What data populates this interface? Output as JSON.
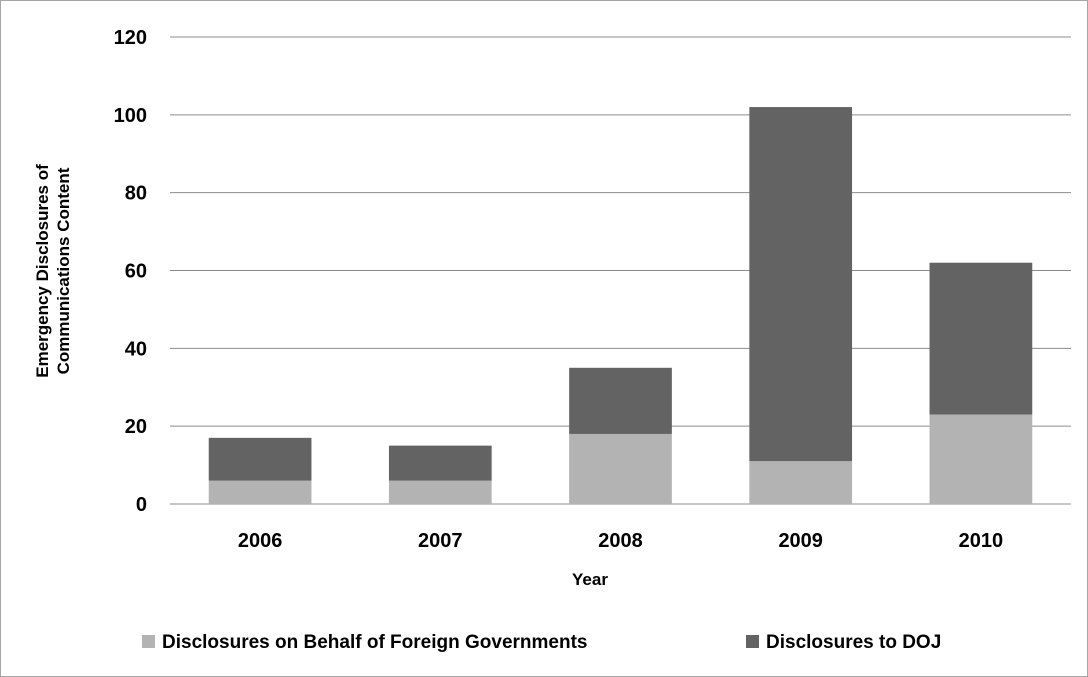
{
  "chart_data": {
    "type": "bar",
    "stacked": true,
    "categories": [
      "2006",
      "2007",
      "2008",
      "2009",
      "2010"
    ],
    "series": [
      {
        "name": "Disclosures on Behalf of Foreign Governments",
        "values": [
          6,
          6,
          18,
          11,
          23
        ],
        "color": "#b3b3b3"
      },
      {
        "name": "Disclosures to DOJ",
        "values": [
          11,
          9,
          17,
          91,
          39
        ],
        "color": "#636363"
      }
    ],
    "title": "",
    "xlabel": "Year",
    "ylabel_lines": [
      "Emergency Disclosures of",
      "Communications Content"
    ],
    "ylim": [
      0,
      120
    ],
    "yticks": [
      0,
      20,
      40,
      60,
      80,
      100,
      120
    ],
    "grid": true,
    "legend": "bottom"
  }
}
